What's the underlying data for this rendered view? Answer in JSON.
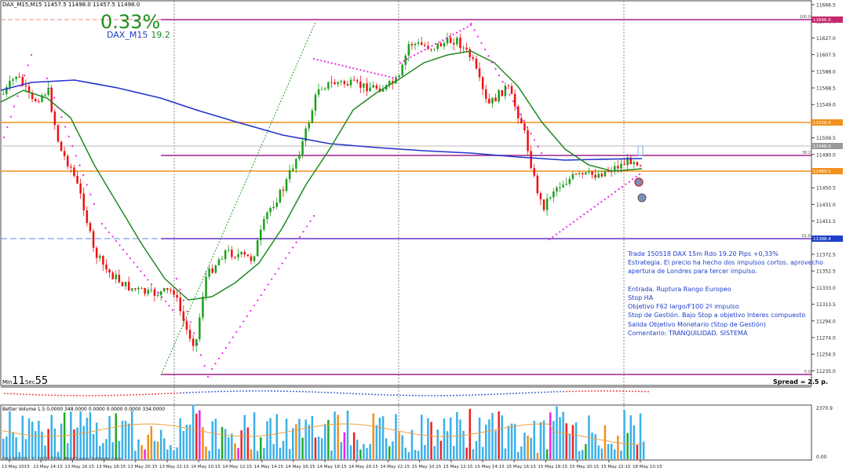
{
  "header": {
    "symbol_info": "DAX_M15,M15  11457.5 11498.0 11457.5 11498.0",
    "percent": "0.33%",
    "symbol": "DAX_M15",
    "value": "19.2"
  },
  "comment_lines": [
    "Trade 150518 DAX 15m Rdo 19.20 Pips +0,33%",
    "Estrategia. El precio ha hecho dos impulsos cortos. aprovecho",
    "apertura de Londres para tercer impulso.",
    "",
    "Entrada. Ruptura Rango Europeo",
    "Stop HA",
    "Objetivo F62 largo/F100 2º impulso",
    "Stop de Gestión. Bajo Stop a objetivo Interes compuesto",
    "Salida Objetivo Monetario (Stop de Gestión)",
    "Comentario: TRANQUILIDAD. SISTEMA"
  ],
  "timer": {
    "min_label": "Min",
    "min_value": "11",
    "sec_label": "Sec",
    "sec_value": "55"
  },
  "spread": "Spread = 2.5 p.",
  "volume_header": "Better Volume 1.5 0.0000 348.0000 0.0000 0.0000 0.0000 334.0000",
  "copyright": "DAX-M15(H), © 2001-2014, MetaQuotes Software Corp.",
  "price_axis": [
    "11666.5",
    "11646.6",
    "11627.0",
    "11607.5",
    "11588.0",
    "11568.5",
    "11549.0",
    "11529.5",
    "11509.5",
    "11490.0",
    "11470.5",
    "11450.5",
    "11431.0",
    "11411.5",
    "11392.0",
    "11372.5",
    "11352.5",
    "11333.0",
    "11313.5",
    "11294.0",
    "11274.0",
    "11254.5",
    "11235.0"
  ],
  "price_tags": [
    {
      "label": "11646.0",
      "color": "#c8286e"
    },
    {
      "label": "11526.0",
      "color": "#f0901e"
    },
    {
      "label": "11498.0",
      "color": "#9a9a9a"
    },
    {
      "label": "11469.1",
      "color": "#f0901e"
    },
    {
      "label": "11388.4",
      "color": "#1e3fc8"
    }
  ],
  "fib_labels": [
    "100.0",
    "38.2",
    "61.8",
    "0.0"
  ],
  "volume_axis": [
    "2370.9",
    "0.00"
  ],
  "time_axis": [
    "13 May 2015",
    "13 May 14:15",
    "13 May 16:15",
    "13 May 18:15",
    "13 May 20:15",
    "13 May 22:15",
    "14 May 10:15",
    "14 May 12:15",
    "14 May 14:15",
    "14 May 16:15",
    "14 May 18:15",
    "14 May 20:15",
    "14 May 22:15",
    "15 May 10:15",
    "15 May 12:15",
    "15 May 14:15",
    "15 May 16:15",
    "15 May 18:15",
    "15 May 20:15",
    "15 May 22:15",
    "18 May 10:15"
  ],
  "colors": {
    "bull": "#1aa01a",
    "bear": "#ee1111",
    "ma_slow": "#2233cc",
    "ma_fast": "#228822",
    "psar": "#ee22ee",
    "orange": "#f0901e",
    "fib": "#a0208a",
    "grid": "#cccccc"
  }
}
